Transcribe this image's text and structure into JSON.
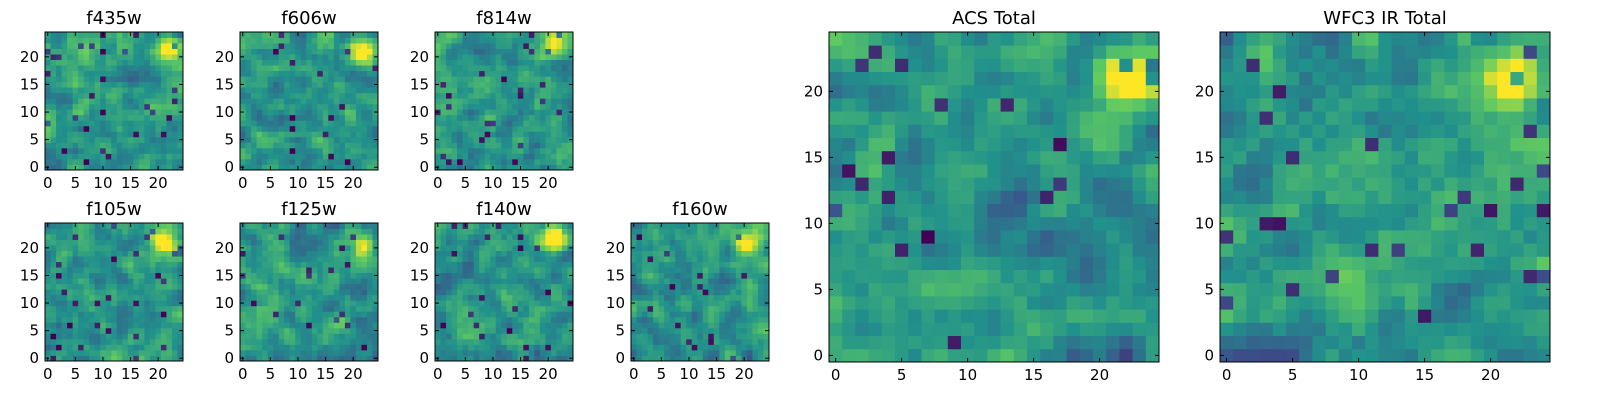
{
  "chart_data": {
    "type": "heatmap",
    "grid_size": 25,
    "colormap": "viridis",
    "color_scale": [
      "#440154",
      "#3b528b",
      "#21918c",
      "#5ec962",
      "#fde725"
    ],
    "panels": [
      {
        "key": "f435w",
        "title": "f435w",
        "xticks": [
          0,
          5,
          10,
          15,
          20
        ],
        "yticks": [
          0,
          5,
          10,
          15,
          20
        ],
        "bright_spot": {
          "x": 22,
          "y": 21
        },
        "seed": 11
      },
      {
        "key": "f606w",
        "title": "f606w",
        "xticks": [
          0,
          5,
          10,
          15,
          20
        ],
        "yticks": [
          0,
          5,
          10,
          15,
          20
        ],
        "bright_spot": {
          "x": 22,
          "y": 21
        },
        "seed": 23
      },
      {
        "key": "f814w",
        "title": "f814w",
        "xticks": [
          0,
          5,
          10,
          15,
          20
        ],
        "yticks": [
          0,
          5,
          10,
          15,
          20
        ],
        "bright_spot": {
          "x": 21,
          "y": 22
        },
        "seed": 37
      },
      {
        "key": "f105w",
        "title": "f105w",
        "xticks": [
          0,
          5,
          10,
          15,
          20
        ],
        "yticks": [
          0,
          5,
          10,
          15,
          20
        ],
        "bright_spot": {
          "x": 21,
          "y": 21
        },
        "seed": 41
      },
      {
        "key": "f125w",
        "title": "f125w",
        "xticks": [
          0,
          5,
          10,
          15,
          20
        ],
        "yticks": [
          0,
          5,
          10,
          15,
          20
        ],
        "bright_spot": {
          "x": 22,
          "y": 20
        },
        "seed": 53
      },
      {
        "key": "f140w",
        "title": "f140w",
        "xticks": [
          0,
          5,
          10,
          15,
          20
        ],
        "yticks": [
          0,
          5,
          10,
          15,
          20
        ],
        "bright_spot": {
          "x": 21,
          "y": 22
        },
        "seed": 67
      },
      {
        "key": "f160w",
        "title": "f160w",
        "xticks": [
          0,
          5,
          10,
          15,
          20
        ],
        "yticks": [
          0,
          5,
          10,
          15,
          20
        ],
        "bright_spot": {
          "x": 21,
          "y": 21
        },
        "seed": 79
      },
      {
        "key": "acs_total",
        "title": "ACS Total",
        "xticks": [
          0,
          5,
          10,
          15,
          20
        ],
        "yticks": [
          0,
          5,
          10,
          15,
          20
        ],
        "bright_spot": {
          "x": 22,
          "y": 21
        },
        "seed": 83
      },
      {
        "key": "wfc3_total",
        "title": "WFC3 IR Total",
        "xticks": [
          0,
          5,
          10,
          15,
          20
        ],
        "yticks": [
          0,
          5,
          10,
          15,
          20
        ],
        "bright_spot": {
          "x": 21,
          "y": 21
        },
        "seed": 97
      }
    ]
  }
}
